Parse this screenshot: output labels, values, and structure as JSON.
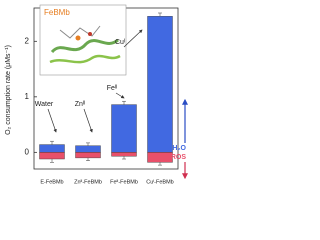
{
  "chart_data": {
    "type": "bar",
    "y_label": "O₂ consumption rate (μMs⁻¹)",
    "categories": [
      "E-FeBMb",
      "Znᴵᴵ-FeBMb",
      "Feᴵᴵ-FeBMb",
      "Cuᴵ-FeBMb"
    ],
    "series": [
      {
        "name": "H₂O",
        "color": "#4169e1",
        "values": [
          0.14,
          0.12,
          0.86,
          2.45
        ],
        "errors": [
          0.06,
          0.05,
          0.06,
          0.06
        ]
      },
      {
        "name": "ROS",
        "color": "#e8506a",
        "values": [
          -0.12,
          -0.1,
          -0.07,
          -0.18
        ],
        "errors": [
          0.06,
          0.05,
          0.05,
          0.05
        ]
      }
    ],
    "annotations": [
      "Water",
      "Znᴵᴵ",
      "Feᴵᴵ",
      "Cuᴵ"
    ],
    "inset_label": "FeBMb",
    "ylim": [
      -0.3,
      2.6
    ],
    "yticks": [
      0,
      1,
      2
    ]
  }
}
